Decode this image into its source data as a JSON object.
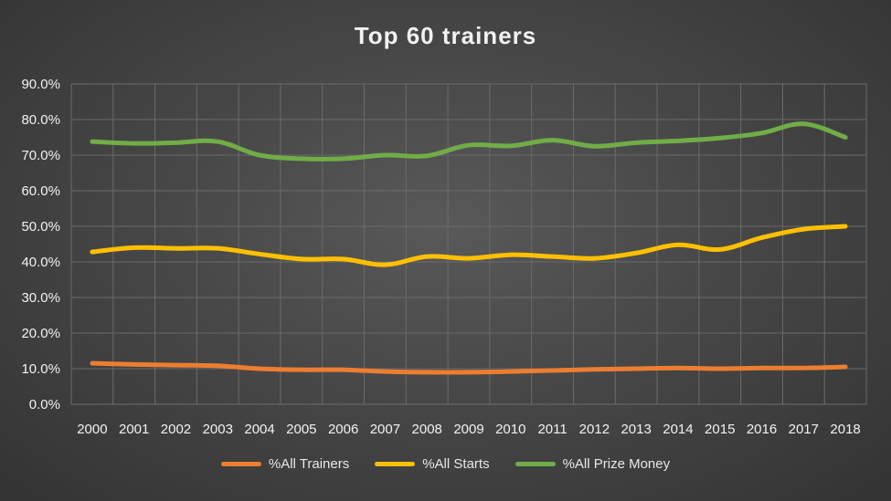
{
  "chart_data": {
    "type": "line",
    "title": "Top 60 trainers",
    "xlabel": "",
    "ylabel": "",
    "categories": [
      "2000",
      "2001",
      "2002",
      "2003",
      "2004",
      "2005",
      "2006",
      "2007",
      "2008",
      "2009",
      "2010",
      "2011",
      "2012",
      "2013",
      "2014",
      "2015",
      "2016",
      "2017",
      "2018"
    ],
    "ylim": [
      0,
      90
    ],
    "y_tick_values": [
      0,
      10,
      20,
      30,
      40,
      50,
      60,
      70,
      80,
      90
    ],
    "y_tick_labels": [
      "0.0%",
      "10.0%",
      "20.0%",
      "30.0%",
      "40.0%",
      "50.0%",
      "60.0%",
      "70.0%",
      "80.0%",
      "90.0%"
    ],
    "grid": true,
    "legend_position": "bottom",
    "series": [
      {
        "name": "%All Trainers",
        "color": "#ed7d31",
        "values": [
          11.5,
          11.2,
          11.0,
          10.8,
          10.0,
          9.7,
          9.7,
          9.2,
          9.0,
          9.0,
          9.2,
          9.5,
          9.8,
          10.0,
          10.2,
          10.0,
          10.2,
          10.2,
          10.5
        ]
      },
      {
        "name": "%All Starts",
        "color": "#ffc000",
        "values": [
          42.8,
          44.0,
          43.8,
          43.8,
          42.2,
          40.8,
          40.8,
          39.2,
          41.5,
          41.0,
          42.0,
          41.5,
          41.0,
          42.5,
          44.8,
          43.5,
          46.8,
          49.2,
          50.0
        ]
      },
      {
        "name": "%All Prize Money",
        "color": "#70ad47",
        "values": [
          73.8,
          73.3,
          73.5,
          73.8,
          70.0,
          69.0,
          69.0,
          70.0,
          69.8,
          72.8,
          72.6,
          74.2,
          72.5,
          73.5,
          74.0,
          74.8,
          76.2,
          78.8,
          75.0
        ]
      }
    ]
  }
}
